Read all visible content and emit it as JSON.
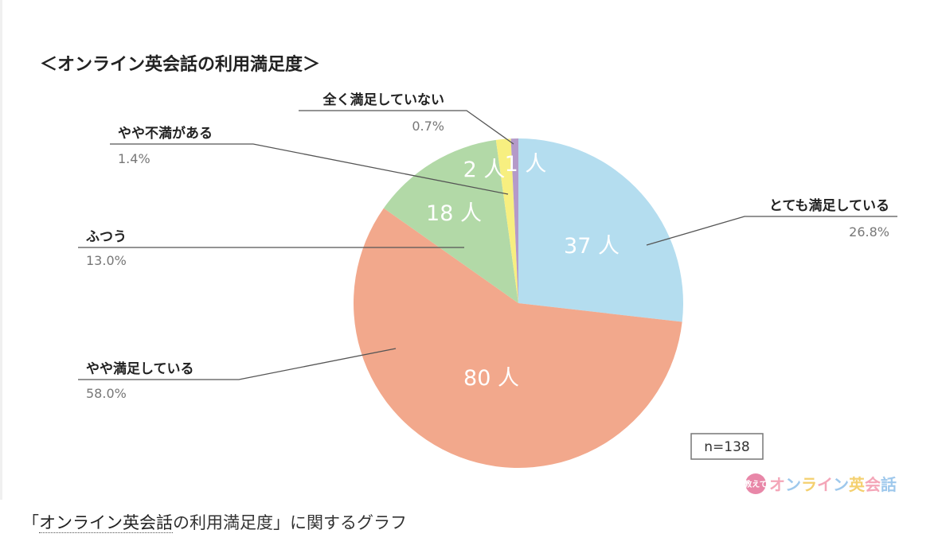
{
  "chart_data": {
    "type": "pie",
    "title": "＜オンライン英会話の利用満足度＞",
    "sample_size": "n=138",
    "unit": "人",
    "slices": [
      {
        "label": "とても満足している",
        "count": 37,
        "percent": "26.8%",
        "color": "#b4ddef"
      },
      {
        "label": "やや満足している",
        "count": 80,
        "percent": "58.0%",
        "color": "#f2a88c"
      },
      {
        "label": "ふつう",
        "count": 18,
        "percent": "13.0%",
        "color": "#b2d9a7"
      },
      {
        "label": "やや不満がある",
        "count": 2,
        "percent": "1.4%",
        "color": "#f7ef80"
      },
      {
        "label": "全く満足していない",
        "count": 1,
        "percent": "0.7%",
        "color": "#b49ac9"
      }
    ]
  },
  "watermark": {
    "badge_text": "教えて",
    "text": "オンライン英会話",
    "badge_color": "#e887a8",
    "text_colors": [
      "#f4a6b8",
      "#9ec8ec",
      "#f4d06f"
    ]
  },
  "caption": {
    "open_bracket": "「",
    "link_text": "オンライン英会話",
    "mid_text": "の利用満足度」に関するグラフ"
  }
}
